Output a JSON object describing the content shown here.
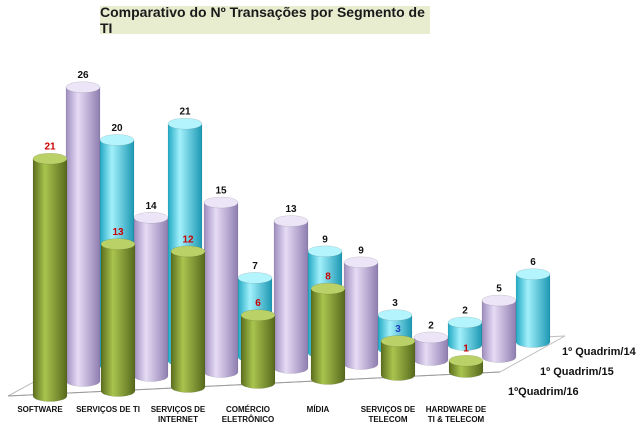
{
  "chart_data": {
    "type": "bar",
    "title": "Comparativo do Nº Transações por Segmento de TI",
    "categories": [
      [
        "SOFTWARE"
      ],
      [
        "SERVIÇOS DE TI"
      ],
      [
        "SERVIÇOS DE",
        "INTERNET"
      ],
      [
        "COMÉRCIO",
        "ELETRÔNICO"
      ],
      [
        "MÍDIA"
      ],
      [
        "SERVIÇOS DE",
        "TELECOM"
      ],
      [
        "HARDWARE  DE",
        "TI & TELECOM"
      ]
    ],
    "series": [
      {
        "name": "1ºQuadrim/16",
        "values": [
          21,
          13,
          12,
          6,
          8,
          3,
          1
        ],
        "color": "#8fa93c",
        "label_colors": [
          "#cc0000",
          "#cc0000",
          "#cc0000",
          "#cc0000",
          "#cc0000",
          "#1f3fbf",
          "#cc0000"
        ]
      },
      {
        "name": "1º Quadrim/15",
        "values": [
          26,
          14,
          15,
          13,
          9,
          2,
          5
        ],
        "color": "#c7b8e0"
      },
      {
        "name": "1º Quadrim/14",
        "values": [
          20,
          21,
          7,
          9,
          3,
          2,
          6
        ],
        "color": "#5ed6ea"
      }
    ],
    "ylim": [
      0,
      26
    ],
    "legend": "right"
  }
}
